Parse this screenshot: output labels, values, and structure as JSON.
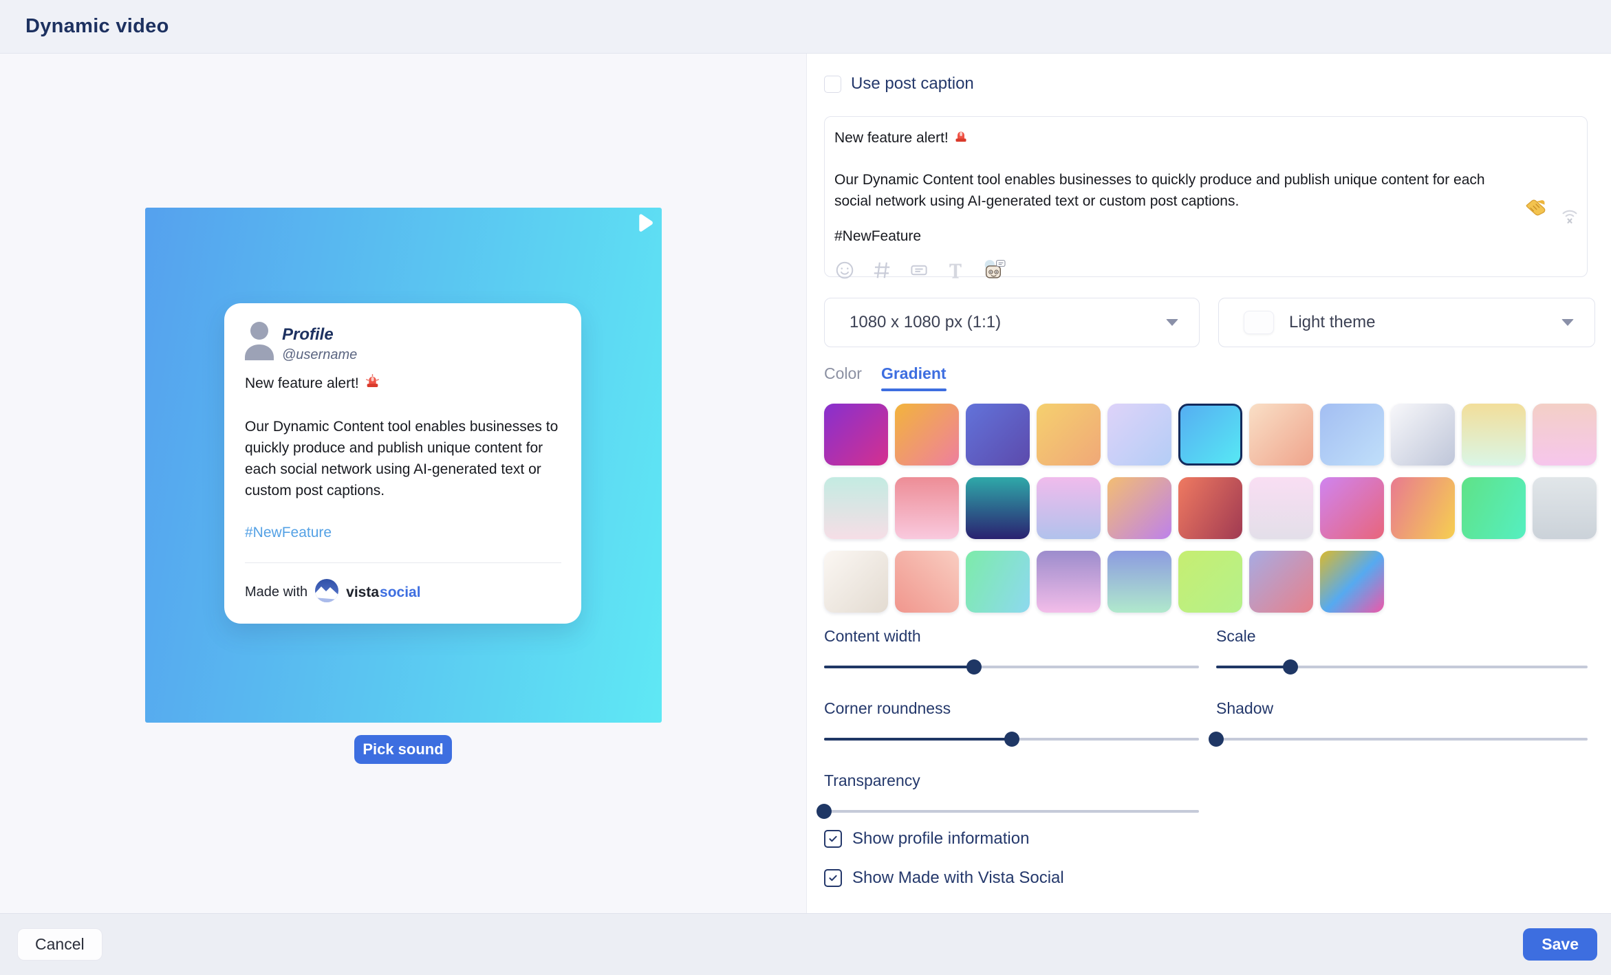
{
  "header": {
    "title": "Dynamic video"
  },
  "preview": {
    "gradient_from": "#55A1EE",
    "gradient_to": "#5FE8F4",
    "profile_name": "Profile",
    "profile_username": "@username",
    "post_title": "New feature alert!",
    "post_body": "Our Dynamic Content tool enables businesses to quickly produce and publish unique content for each social network using AI-generated text or custom post captions.",
    "post_hashtag": "#NewFeature",
    "made_with_label": "Made with",
    "brand_first": "vista",
    "brand_second": "social",
    "pick_sound_label": "Pick sound"
  },
  "caption_editor": {
    "use_post_caption_label": "Use post caption",
    "title_line": "New feature alert!",
    "body": "Our Dynamic Content tool enables businesses to quickly produce and publish unique content for each social network using AI-generated text or custom post captions.",
    "hashtag_line": "#NewFeature",
    "toolbar_icons": [
      "emoji-picker-icon",
      "hashtag-icon",
      "label-icon",
      "text-format-icon",
      "ai-robot-icon"
    ],
    "corner_icons": [
      "handshake-icon",
      "wifi-off-icon"
    ]
  },
  "selects": {
    "size_value": "1080 x 1080 px (1:1)",
    "theme_value": "Light theme"
  },
  "tabs": [
    {
      "label": "Color",
      "active": false
    },
    {
      "label": "Gradient",
      "active": true
    }
  ],
  "gradients": {
    "selected": {
      "row": 0,
      "col": 5
    },
    "rows": [
      [
        "linear-gradient(135deg,#8730CE 0%,#D5308F 100%)",
        "linear-gradient(135deg,#F2B43C 0%,#EE7F9E 100%)",
        "linear-gradient(135deg,#6273DA 0%,#5C4AAC 100%)",
        "linear-gradient(135deg,#F5D06E 0%,#F0A878 100%)",
        "linear-gradient(135deg,#DED3F9 0%,#B4CDF6 100%)",
        "linear-gradient(135deg,#55AEF2 0%,#57E8F4 100%)",
        "linear-gradient(135deg,#F9DFC6 0%,#EFA48C 100%)",
        "linear-gradient(135deg,#A3BEF2 0%,#C0DFFA 100%)",
        "linear-gradient(135deg,#F7F7FA 0%,#BFC6D9 100%)",
        "linear-gradient(180deg,#F2DE9A 0%,#DAF6E6 100%)",
        "linear-gradient(180deg,#F3CFC6 0%,#F6C6EC 100%)"
      ],
      [
        "linear-gradient(180deg,#C3EBE2 0%,#F6DEE6 100%)",
        "linear-gradient(180deg,#ED8D96 0%,#F9C9DE 100%)",
        "linear-gradient(180deg,#2FA9A9 0%,#2A2170 100%)",
        "linear-gradient(180deg,#F0BBEC 0%,#B1C2EC 100%)",
        "linear-gradient(135deg,#F3BD72 0%,#BD81EB 100%)",
        "linear-gradient(120deg,#EF7A61 0%,#A03A52 100%)",
        "linear-gradient(180deg,#F9DEF3 0%,#E3DFE9 100%)",
        "linear-gradient(135deg,#CF84F0 0%,#E8657B 100%)",
        "linear-gradient(115deg,#E87A90 0%,#F6CF50 100%)",
        "linear-gradient(115deg,#5FE287 0%,#55EFC1 100%)",
        "linear-gradient(180deg,#E1E6E9 0%,#CBD2D9 100%)"
      ],
      [
        "linear-gradient(135deg,#FBF7F3 0%,#E3DBD1 100%)",
        "linear-gradient(45deg,#F0968D 0%,#F9CDC1 100%)",
        "linear-gradient(115deg,#7DEBA9 0%,#8DD9EF 100%)",
        "linear-gradient(180deg,#9C8CCC 0%,#F3BDE9 100%)",
        "linear-gradient(180deg,#8C9BE0 0%,#B0E9CC 100%)",
        "linear-gradient(135deg,#C6EE71 0%,#B5F18B 100%)",
        "linear-gradient(135deg,#A7ABE3 0%,#E8808A 100%)",
        "linear-gradient(135deg,#D9B92E 0%,#56AAF0 52%,#EE57A8 100%)"
      ]
    ]
  },
  "sliders": [
    {
      "label": "Content width",
      "value_pct": 40
    },
    {
      "label": "Scale",
      "value_pct": 20
    },
    {
      "label": "Corner roundness",
      "value_pct": 50
    },
    {
      "label": "Shadow",
      "value_pct": 0
    },
    {
      "label": "Transparency",
      "value_pct": 0
    }
  ],
  "display_checkboxes": [
    {
      "label": "Show profile information",
      "checked": true
    },
    {
      "label": "Show Made with Vista Social",
      "checked": true
    }
  ],
  "footer": {
    "cancel_label": "Cancel",
    "save_label": "Save"
  },
  "colors": {
    "accent_blue": "#3D6EE0",
    "navy": "#24386B",
    "title_navy": "#1D3160",
    "hashtag_blue": "#54A1E5"
  }
}
